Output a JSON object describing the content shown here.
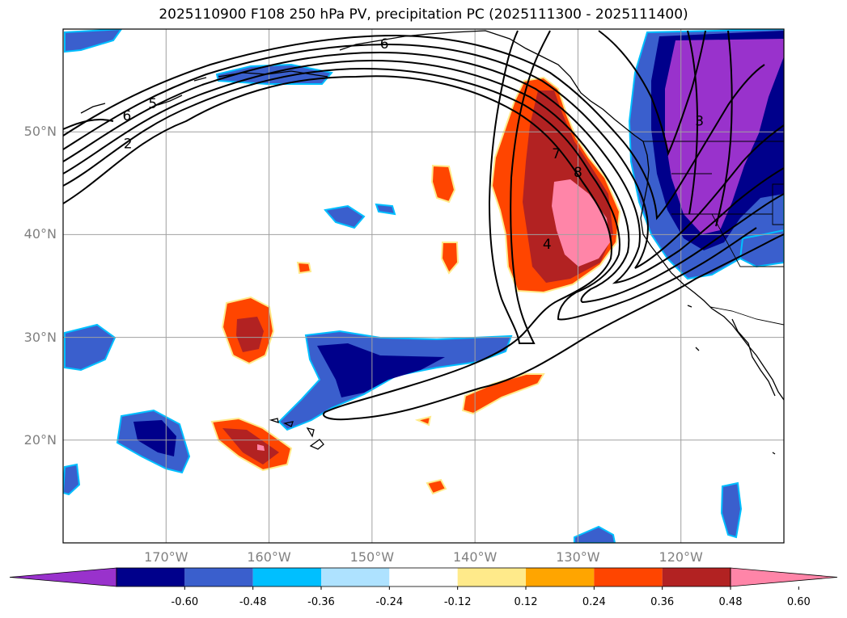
{
  "title": "2025110900 F108 250 hPa PV, precipitation PC (2025111300 - 2025111400)",
  "map": {
    "lon_range": [
      -180,
      -110
    ],
    "lat_range": [
      10,
      60
    ],
    "lat_ticks": [
      {
        "value": 20,
        "label": "20°N"
      },
      {
        "value": 30,
        "label": "30°N"
      },
      {
        "value": 40,
        "label": "40°N"
      },
      {
        "value": 50,
        "label": "50°N"
      }
    ],
    "lon_ticks": [
      {
        "value": -170,
        "label": "170°W"
      },
      {
        "value": -160,
        "label": "160°W"
      },
      {
        "value": -150,
        "label": "150°W"
      },
      {
        "value": -140,
        "label": "140°W"
      },
      {
        "value": -130,
        "label": "130°W"
      },
      {
        "value": -120,
        "label": "120°W"
      }
    ],
    "grid": true,
    "contour_labels": [
      {
        "text": "6",
        "lon": -148.8,
        "lat": 58.5
      },
      {
        "text": "6",
        "lon": -173.8,
        "lat": 51.5
      },
      {
        "text": "5",
        "lon": -171.3,
        "lat": 52.7
      },
      {
        "text": "2",
        "lon": -173.7,
        "lat": 48.8
      },
      {
        "text": "7",
        "lon": -132.1,
        "lat": 47.8
      },
      {
        "text": "8",
        "lon": -130.0,
        "lat": 46.0
      },
      {
        "text": "4",
        "lon": -133.0,
        "lat": 39.0
      },
      {
        "text": "3",
        "lon": -118.2,
        "lat": 51.0
      }
    ]
  },
  "colorbar": {
    "colors": [
      "#9932cc",
      "#00008b",
      "#3a5fcd",
      "#00bfff",
      "#aee2ff",
      "#ffffff",
      "#ffea8a",
      "#ffa500",
      "#ff4500",
      "#b22222",
      "#ff85a8"
    ],
    "ticks": [
      "-0.60",
      "-0.48",
      "-0.36",
      "-0.24",
      "-0.12",
      "0.12",
      "0.24",
      "0.36",
      "0.48",
      "0.60"
    ]
  }
}
